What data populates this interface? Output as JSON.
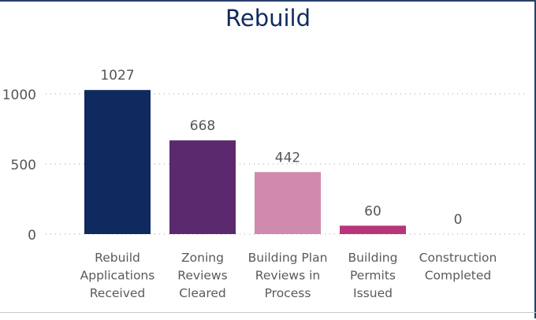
{
  "chart_data": {
    "type": "bar",
    "title": "Rebuild",
    "categories": [
      [
        "Rebuild",
        "Applications",
        "Received"
      ],
      [
        "Zoning",
        "Reviews",
        "Cleared"
      ],
      [
        "Building Plan",
        "Reviews in",
        "Process"
      ],
      [
        "Building",
        "Permits",
        "Issued"
      ],
      [
        "Construction",
        "Completed"
      ]
    ],
    "values": [
      1027,
      668,
      442,
      60,
      0
    ],
    "data_labels": [
      "1027",
      "668",
      "442",
      "60",
      "0"
    ],
    "colors": [
      "#0f2a5e",
      "#5b2a6e",
      "#d08aad",
      "#b8357a",
      "#b8357a"
    ],
    "yticks": [
      0,
      500,
      1000
    ],
    "ytick_labels": [
      "0",
      "500",
      "1000"
    ],
    "ylim": [
      0,
      1150
    ],
    "grid": true,
    "xlabel": "",
    "ylabel": ""
  }
}
